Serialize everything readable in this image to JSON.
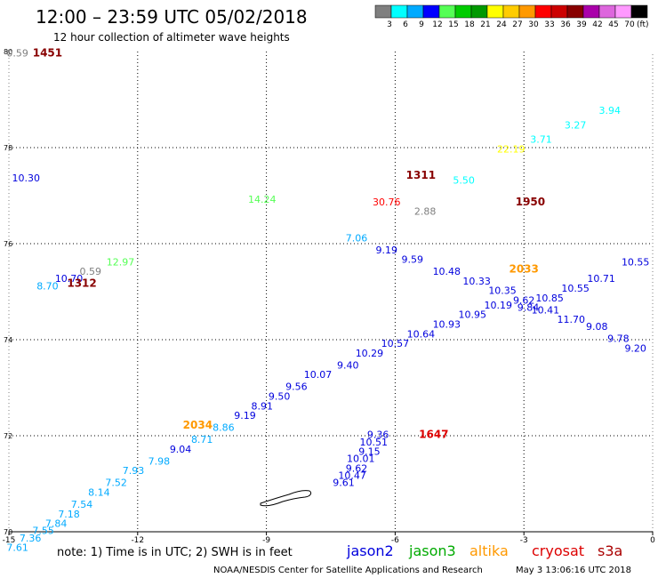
{
  "header": {
    "title": "12:00 – 23:59 UTC 05/02/2018",
    "subtitle": "12 hour collection of altimeter wave heights",
    "unit": "(ft)"
  },
  "colorbar": {
    "colors": [
      "#7f7f7f",
      "#00ffff",
      "#00aaff",
      "#0000ff",
      "#55ff55",
      "#00cc00",
      "#009900",
      "#ffff00",
      "#ffcc00",
      "#ff9900",
      "#ff0000",
      "#cc0000",
      "#880000",
      "#aa00aa",
      "#dd66dd",
      "#ff99ff",
      "#000000"
    ],
    "labels": [
      "3",
      "6",
      "9",
      "12",
      "15",
      "18",
      "21",
      "24",
      "27",
      "30",
      "33",
      "36",
      "39",
      "42",
      "45",
      "70"
    ]
  },
  "axes": {
    "x_ticks": [
      "-15",
      "-12",
      "-9",
      "-6",
      "-3",
      "0"
    ],
    "y_ticks": [
      "70",
      "72",
      "74",
      "76",
      "78",
      "80"
    ]
  },
  "footer": {
    "note": "note: 1) Time is in UTC; 2) SWH is in feet",
    "credit": "NOAA/NESDIS Center for Satellite Applications and Research",
    "timestamp": "May  3 13:06:16 UTC 2018"
  },
  "legend": [
    {
      "name": "jason2",
      "color": "#0000dd"
    },
    {
      "name": "jason3",
      "color": "#00aa00"
    },
    {
      "name": "altika",
      "color": "#ff9900"
    },
    {
      "name": "cryosat",
      "color": "#dd0000"
    },
    {
      "name": "s3a",
      "color": "#aa0000"
    }
  ],
  "chart_data": {
    "type": "scatter",
    "title": "12 hour collection of altimeter wave heights",
    "xlim": [
      -15,
      0
    ],
    "ylim": [
      70,
      80
    ],
    "grid": true,
    "time_labels": [
      {
        "text": "1451",
        "x": -14.1,
        "y": 79.9,
        "color": "#880000"
      },
      {
        "text": "1312",
        "x": -13.3,
        "y": 75.1,
        "color": "#880000"
      },
      {
        "text": "1311",
        "x": -5.4,
        "y": 77.35,
        "color": "#880000"
      },
      {
        "text": "1950",
        "x": -2.85,
        "y": 76.8,
        "color": "#880000"
      },
      {
        "text": "2033",
        "x": -3.0,
        "y": 75.4,
        "color": "#ff9900"
      },
      {
        "text": "2034",
        "x": -10.6,
        "y": 72.15,
        "color": "#ff9900"
      },
      {
        "text": "1647",
        "x": -5.1,
        "y": 71.95,
        "color": "#dd0000"
      }
    ],
    "points": [
      {
        "v": "0.59",
        "x": -14.8,
        "y": 79.9,
        "c": "#7f7f7f"
      },
      {
        "v": "10.30",
        "x": -14.6,
        "y": 77.3,
        "c": "#0000dd"
      },
      {
        "v": "12.97",
        "x": -12.4,
        "y": 75.55,
        "c": "#55ff55"
      },
      {
        "v": "0.59",
        "x": -13.1,
        "y": 75.35,
        "c": "#7f7f7f"
      },
      {
        "v": "10.70",
        "x": -13.6,
        "y": 75.2,
        "c": "#0000dd"
      },
      {
        "v": "8.70",
        "x": -14.1,
        "y": 75.05,
        "c": "#00aaff"
      },
      {
        "v": "14.24",
        "x": -9.1,
        "y": 76.85,
        "c": "#55ff55"
      },
      {
        "v": "7.06",
        "x": -6.9,
        "y": 76.05,
        "c": "#00aaff"
      },
      {
        "v": "30.76",
        "x": -6.2,
        "y": 76.8,
        "c": "#ff0000"
      },
      {
        "v": "2.88",
        "x": -5.3,
        "y": 76.6,
        "c": "#7f7f7f"
      },
      {
        "v": "5.50",
        "x": -4.4,
        "y": 77.25,
        "c": "#00ffff"
      },
      {
        "v": "9.19",
        "x": -6.2,
        "y": 75.8,
        "c": "#0000dd"
      },
      {
        "v": "9.59",
        "x": -5.6,
        "y": 75.6,
        "c": "#0000dd"
      },
      {
        "v": "10.48",
        "x": -4.8,
        "y": 75.35,
        "c": "#0000dd"
      },
      {
        "v": "10.33",
        "x": -4.1,
        "y": 75.15,
        "c": "#0000dd"
      },
      {
        "v": "10.35",
        "x": -3.5,
        "y": 74.95,
        "c": "#0000dd"
      },
      {
        "v": "9.62",
        "x": -3.0,
        "y": 74.75,
        "c": "#0000dd"
      },
      {
        "v": "9.84",
        "x": -2.9,
        "y": 74.6,
        "c": "#0000dd"
      },
      {
        "v": "10.85",
        "x": -2.4,
        "y": 74.8,
        "c": "#0000dd"
      },
      {
        "v": "10.41",
        "x": -2.5,
        "y": 74.55,
        "c": "#0000dd"
      },
      {
        "v": "10.55",
        "x": -1.8,
        "y": 75.0,
        "c": "#0000dd"
      },
      {
        "v": "10.71",
        "x": -1.2,
        "y": 75.2,
        "c": "#0000dd"
      },
      {
        "v": "10.55",
        "x": -0.4,
        "y": 75.55,
        "c": "#0000dd"
      },
      {
        "v": "11.70",
        "x": -1.9,
        "y": 74.35,
        "c": "#0000dd"
      },
      {
        "v": "9.08",
        "x": -1.3,
        "y": 74.2,
        "c": "#0000dd"
      },
      {
        "v": "9.78",
        "x": -0.8,
        "y": 73.95,
        "c": "#0000dd"
      },
      {
        "v": "9.20",
        "x": -0.4,
        "y": 73.75,
        "c": "#0000dd"
      },
      {
        "v": "22.19",
        "x": -3.3,
        "y": 77.9,
        "c": "#ffff00"
      },
      {
        "v": "3.71",
        "x": -2.6,
        "y": 78.1,
        "c": "#00ffff"
      },
      {
        "v": "3.27",
        "x": -1.8,
        "y": 78.4,
        "c": "#00ffff"
      },
      {
        "v": "3.94",
        "x": -1.0,
        "y": 78.7,
        "c": "#00ffff"
      },
      {
        "v": "10.19",
        "x": -3.6,
        "y": 74.65,
        "c": "#0000dd"
      },
      {
        "v": "10.95",
        "x": -4.2,
        "y": 74.45,
        "c": "#0000dd"
      },
      {
        "v": "10.93",
        "x": -4.8,
        "y": 74.25,
        "c": "#0000dd"
      },
      {
        "v": "10.64",
        "x": -5.4,
        "y": 74.05,
        "c": "#0000dd"
      },
      {
        "v": "10.57",
        "x": -6.0,
        "y": 73.85,
        "c": "#0000dd"
      },
      {
        "v": "10.29",
        "x": -6.6,
        "y": 73.65,
        "c": "#0000dd"
      },
      {
        "v": "9.40",
        "x": -7.1,
        "y": 73.4,
        "c": "#0000dd"
      },
      {
        "v": "10.07",
        "x": -7.8,
        "y": 73.2,
        "c": "#0000dd"
      },
      {
        "v": "9.56",
        "x": -8.3,
        "y": 72.95,
        "c": "#0000dd"
      },
      {
        "v": "9.50",
        "x": -8.7,
        "y": 72.75,
        "c": "#0000dd"
      },
      {
        "v": "8.91",
        "x": -9.1,
        "y": 72.55,
        "c": "#0000dd"
      },
      {
        "v": "9.19",
        "x": -9.5,
        "y": 72.35,
        "c": "#0000dd"
      },
      {
        "v": "8.86",
        "x": -10.0,
        "y": 72.1,
        "c": "#00aaff"
      },
      {
        "v": "8.71",
        "x": -10.5,
        "y": 71.85,
        "c": "#00aaff"
      },
      {
        "v": "9.04",
        "x": -11.0,
        "y": 71.65,
        "c": "#0000dd"
      },
      {
        "v": "7.98",
        "x": -11.5,
        "y": 71.4,
        "c": "#00aaff"
      },
      {
        "v": "7.93",
        "x": -12.1,
        "y": 71.2,
        "c": "#00aaff"
      },
      {
        "v": "7.52",
        "x": -12.5,
        "y": 70.95,
        "c": "#00aaff"
      },
      {
        "v": "8.14",
        "x": -12.9,
        "y": 70.75,
        "c": "#00aaff"
      },
      {
        "v": "7.54",
        "x": -13.3,
        "y": 70.5,
        "c": "#00aaff"
      },
      {
        "v": "7.18",
        "x": -13.6,
        "y": 70.3,
        "c": "#00aaff"
      },
      {
        "v": "7.84",
        "x": -13.9,
        "y": 70.1,
        "c": "#00aaff"
      },
      {
        "v": "7.55",
        "x": -14.2,
        "y": 69.95,
        "c": "#00aaff"
      },
      {
        "v": "7.36",
        "x": -14.5,
        "y": 69.8,
        "c": "#00aaff"
      },
      {
        "v": "7.61",
        "x": -14.8,
        "y": 69.6,
        "c": "#00aaff"
      },
      {
        "v": "9.36",
        "x": -6.4,
        "y": 71.95,
        "c": "#0000dd"
      },
      {
        "v": "10.51",
        "x": -6.5,
        "y": 71.8,
        "c": "#0000dd"
      },
      {
        "v": "9.15",
        "x": -6.6,
        "y": 71.6,
        "c": "#0000dd"
      },
      {
        "v": "10.01",
        "x": -6.8,
        "y": 71.45,
        "c": "#0000dd"
      },
      {
        "v": "9.62",
        "x": -6.9,
        "y": 71.25,
        "c": "#0000dd"
      },
      {
        "v": "10.47",
        "x": -7.0,
        "y": 71.1,
        "c": "#0000dd"
      },
      {
        "v": "9.61",
        "x": -7.2,
        "y": 70.95,
        "c": "#0000dd"
      }
    ]
  }
}
